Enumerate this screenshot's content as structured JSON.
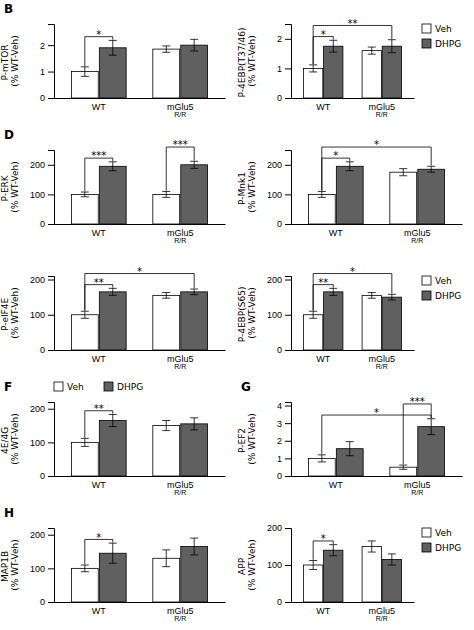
{
  "chart_data": [
    {
      "type": "bar",
      "title": "B",
      "ylabel": "P-mTOR (% WT-Veh)",
      "categories": [
        "WT",
        "mGlu5\nR/R"
      ],
      "series": [
        {
          "name": "Veh",
          "color": "#ffffff",
          "values": [
            1.0,
            1.85
          ],
          "errors": [
            0.18,
            0.12
          ]
        },
        {
          "name": "DHPG",
          "color": "#606060",
          "values": [
            1.9,
            2.0
          ],
          "errors": [
            0.28,
            0.22
          ]
        }
      ],
      "ylim": [
        0,
        2.8
      ],
      "yticks": [
        0,
        1,
        2
      ],
      "annotations": [
        {
          "text": "*",
          "from": {
            "category": "WT",
            "series": "Veh"
          },
          "to": {
            "category": "WT",
            "series": "DHPG"
          }
        }
      ]
    },
    {
      "type": "bar",
      "ylabel": "P-4EBP(T37/46) (% WT-Veh)",
      "categories": [
        "WT",
        "mGlu5\nR/R"
      ],
      "series": [
        {
          "name": "Veh",
          "color": "#ffffff",
          "values": [
            1.0,
            1.6
          ],
          "errors": [
            0.12,
            0.12
          ]
        },
        {
          "name": "DHPG",
          "color": "#606060",
          "values": [
            1.75,
            1.75
          ],
          "errors": [
            0.2,
            0.22
          ]
        }
      ],
      "ylim": [
        0,
        2.5
      ],
      "yticks": [
        0,
        1,
        2
      ],
      "legend": "right",
      "annotations": [
        {
          "text": "*",
          "from": {
            "category": "WT",
            "series": "Veh"
          },
          "to": {
            "category": "WT",
            "series": "DHPG"
          }
        },
        {
          "text": "**",
          "from": {
            "category": "WT",
            "series": "Veh"
          },
          "to": {
            "category": "mGlu5\nR/R",
            "series": "DHPG"
          }
        }
      ]
    },
    {
      "type": "bar",
      "title": "D",
      "ylabel": "P-ERK (% WT-Veh)",
      "categories": [
        "WT",
        "mGlu5\nR/R"
      ],
      "series": [
        {
          "name": "Veh",
          "color": "#ffffff",
          "values": [
            100,
            100
          ],
          "errors": [
            8,
            10
          ]
        },
        {
          "name": "DHPG",
          "color": "#606060",
          "values": [
            195,
            200
          ],
          "errors": [
            15,
            12
          ]
        }
      ],
      "ylim": [
        0,
        250
      ],
      "yticks": [
        0,
        100,
        200
      ],
      "annotations": [
        {
          "text": "***",
          "from": {
            "category": "WT",
            "series": "Veh"
          },
          "to": {
            "category": "WT",
            "series": "DHPG"
          }
        },
        {
          "text": "***",
          "from": {
            "category": "mGlu5\nR/R",
            "series": "Veh"
          },
          "to": {
            "category": "mGlu5\nR/R",
            "series": "DHPG"
          }
        }
      ]
    },
    {
      "type": "bar",
      "ylabel": "P-Mnk1 (% WT-Veh)",
      "categories": [
        "WT",
        "mGlu5\nR/R"
      ],
      "series": [
        {
          "name": "Veh",
          "color": "#ffffff",
          "values": [
            100,
            175
          ],
          "errors": [
            10,
            12
          ]
        },
        {
          "name": "DHPG",
          "color": "#606060",
          "values": [
            195,
            185
          ],
          "errors": [
            15,
            10
          ]
        }
      ],
      "ylim": [
        0,
        250
      ],
      "yticks": [
        0,
        100,
        200
      ],
      "annotations": [
        {
          "text": "*",
          "from": {
            "category": "WT",
            "series": "Veh"
          },
          "to": {
            "category": "WT",
            "series": "DHPG"
          }
        },
        {
          "text": "*",
          "from": {
            "category": "WT",
            "series": "Veh"
          },
          "to": {
            "category": "mGlu5\nR/R",
            "series": "DHPG"
          }
        }
      ]
    },
    {
      "type": "bar",
      "ylabel": "P-eIF4E (% WT-Veh)",
      "categories": [
        "WT",
        "mGlu5\nR/R"
      ],
      "series": [
        {
          "name": "Veh",
          "color": "#ffffff",
          "values": [
            100,
            155
          ],
          "errors": [
            10,
            8
          ]
        },
        {
          "name": "DHPG",
          "color": "#606060",
          "values": [
            165,
            165
          ],
          "errors": [
            10,
            8
          ]
        }
      ],
      "ylim": [
        0,
        210
      ],
      "yticks": [
        0,
        100,
        200
      ],
      "annotations": [
        {
          "text": "**",
          "from": {
            "category": "WT",
            "series": "Veh"
          },
          "to": {
            "category": "WT",
            "series": "DHPG"
          }
        },
        {
          "text": "*",
          "from": {
            "category": "WT",
            "series": "Veh"
          },
          "to": {
            "category": "mGlu5\nR/R",
            "series": "DHPG"
          }
        }
      ]
    },
    {
      "type": "bar",
      "ylabel": "P-4EBP(S65) (% WT-Veh)",
      "categories": [
        "WT",
        "mGlu5\nR/R"
      ],
      "series": [
        {
          "name": "Veh",
          "color": "#ffffff",
          "values": [
            100,
            155
          ],
          "errors": [
            10,
            8
          ]
        },
        {
          "name": "DHPG",
          "color": "#606060",
          "values": [
            165,
            150
          ],
          "errors": [
            10,
            8
          ]
        }
      ],
      "ylim": [
        0,
        210
      ],
      "yticks": [
        0,
        100,
        200
      ],
      "legend": "right",
      "annotations": [
        {
          "text": "**",
          "from": {
            "category": "WT",
            "series": "Veh"
          },
          "to": {
            "category": "WT",
            "series": "DHPG"
          }
        },
        {
          "text": "*",
          "from": {
            "category": "WT",
            "series": "Veh"
          },
          "to": {
            "category": "mGlu5\nR/R",
            "series": "DHPG"
          }
        }
      ]
    },
    {
      "type": "bar",
      "title": "F",
      "ylabel": "4E/4G (% WT-Veh)",
      "categories": [
        "WT",
        "mGlu5\nR/R"
      ],
      "series": [
        {
          "name": "Veh",
          "color": "#ffffff",
          "values": [
            100,
            150
          ],
          "errors": [
            12,
            15
          ]
        },
        {
          "name": "DHPG",
          "color": "#606060",
          "values": [
            165,
            155
          ],
          "errors": [
            18,
            18
          ]
        }
      ],
      "ylim": [
        0,
        220
      ],
      "yticks": [
        0,
        100,
        200
      ],
      "legend": "top",
      "annotations": [
        {
          "text": "**",
          "from": {
            "category": "WT",
            "series": "Veh"
          },
          "to": {
            "category": "WT",
            "series": "DHPG"
          }
        }
      ]
    },
    {
      "type": "bar",
      "title": "G",
      "ylabel": "P-EF2 (% WT-Veh)",
      "categories": [
        "WT",
        "mGlu5\nR/R"
      ],
      "series": [
        {
          "name": "Veh",
          "color": "#ffffff",
          "values": [
            1.0,
            0.5
          ],
          "errors": [
            0.2,
            0.12
          ]
        },
        {
          "name": "DHPG",
          "color": "#606060",
          "values": [
            1.55,
            2.8
          ],
          "errors": [
            0.4,
            0.45
          ]
        }
      ],
      "ylim": [
        0,
        4.2
      ],
      "yticks": [
        0,
        1,
        2,
        3,
        4
      ],
      "annotations": [
        {
          "text": "*",
          "from": {
            "category": "WT",
            "series": "Veh"
          },
          "to": {
            "category": "mGlu5\nR/R",
            "series": "DHPG"
          }
        },
        {
          "text": "***",
          "from": {
            "category": "mGlu5\nR/R",
            "series": "Veh"
          },
          "to": {
            "category": "mGlu5\nR/R",
            "series": "DHPG"
          }
        }
      ]
    },
    {
      "type": "bar",
      "title": "H",
      "ylabel": "MAP1B (% WT-Veh)",
      "categories": [
        "WT",
        "mGlu5\nR/R"
      ],
      "series": [
        {
          "name": "Veh",
          "color": "#ffffff",
          "values": [
            100,
            130
          ],
          "errors": [
            10,
            25
          ]
        },
        {
          "name": "DHPG",
          "color": "#606060",
          "values": [
            145,
            165
          ],
          "errors": [
            30,
            25
          ]
        }
      ],
      "ylim": [
        0,
        220
      ],
      "yticks": [
        0,
        100,
        200
      ],
      "annotations": [
        {
          "text": "*",
          "from": {
            "category": "WT",
            "series": "Veh"
          },
          "to": {
            "category": "WT",
            "series": "DHPG"
          }
        }
      ]
    },
    {
      "type": "bar",
      "ylabel": "APP (% WT-Veh)",
      "categories": [
        "WT",
        "mGlu5\nR/R"
      ],
      "series": [
        {
          "name": "Veh",
          "color": "#ffffff",
          "values": [
            100,
            150
          ],
          "errors": [
            12,
            15
          ]
        },
        {
          "name": "DHPG",
          "color": "#606060",
          "values": [
            140,
            115
          ],
          "errors": [
            15,
            15
          ]
        }
      ],
      "ylim": [
        0,
        200
      ],
      "yticks": [
        0,
        100,
        200
      ],
      "legend": "right",
      "annotations": [
        {
          "text": "*",
          "from": {
            "category": "WT",
            "series": "Veh"
          },
          "to": {
            "category": "WT",
            "series": "DHPG"
          }
        }
      ]
    }
  ]
}
